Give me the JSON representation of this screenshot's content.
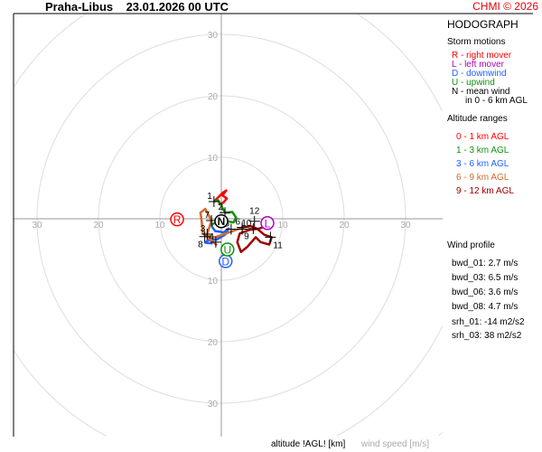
{
  "header": {
    "title": "Praha-Libus    23.01.2026 00 UTC",
    "credit": "CHMI © 2026"
  },
  "panel": {
    "heading": "HODOGRAPH",
    "storm_motions_title": "Storm motions",
    "storm_motions": [
      {
        "text": "R - right mover",
        "color": "#ff0000"
      },
      {
        "text": "L - left mover",
        "color": "#b000c0"
      },
      {
        "text": "D - downwind",
        "color": "#2060ff"
      },
      {
        "text": "U - upwind",
        "color": "#109010"
      },
      {
        "text": "N - mean wind",
        "color": "#000000"
      },
      {
        "text": "in 0 - 6 km AGL",
        "color": "#000000"
      }
    ],
    "altitude_title": "Altitude ranges",
    "altitude_ranges": [
      {
        "text": "0 - 1 km AGL",
        "color": "#ff0000"
      },
      {
        "text": "1 - 3 km AGL",
        "color": "#109010"
      },
      {
        "text": "3 - 6 km AGL",
        "color": "#2060ff"
      },
      {
        "text": "6 - 9 km AGL",
        "color": "#d06a30"
      },
      {
        "text": "9 - 12 km AGL",
        "color": "#a00000"
      }
    ],
    "wind_profile_title": "Wind profile",
    "wind_profile": [
      "bwd_01: 2.7 m/s",
      "bwd_03: 6.5 m/s",
      "bwd_06: 3.6 m/s",
      "bwd_08: 4.7 m/s",
      "srh_01: -14 m2/s2",
      "srh_03: 38 m2/s2"
    ]
  },
  "footer": {
    "altitude_label": "altitude !AGL! [km]",
    "speed_label": "wind speed [m/s]"
  },
  "chart_data": {
    "type": "line",
    "title": "HODOGRAPH",
    "rings": [
      10,
      20,
      30,
      40,
      50
    ],
    "tick_labels": [
      "10",
      "20",
      "30"
    ],
    "grid": true,
    "units": "m/s",
    "series": [
      {
        "name": "0 - 1 km AGL",
        "color": "#ff0000",
        "points": [
          [
            -1.2,
            2.8
          ],
          [
            -0.4,
            3.6
          ],
          [
            0.2,
            4.2
          ],
          [
            0.8,
            4.6
          ],
          [
            0.2,
            3.8
          ],
          [
            0.9,
            3.3
          ],
          [
            0.3,
            2.6
          ],
          [
            -0.5,
            2.4
          ]
        ]
      },
      {
        "name": "1 - 3 km AGL",
        "color": "#109010",
        "points": [
          [
            -1.2,
            2.8
          ],
          [
            -0.5,
            3.0
          ],
          [
            0.6,
            1.0
          ],
          [
            1.8,
            1.1
          ],
          [
            2.4,
            0.2
          ],
          [
            2.0,
            -0.6
          ],
          [
            1.0,
            -0.4
          ],
          [
            -1.4,
            -0.8
          ],
          [
            -1.6,
            -1.2
          ]
        ]
      },
      {
        "name": "3 - 6 km AGL",
        "color": "#2060ff",
        "points": [
          [
            -1.6,
            -1.2
          ],
          [
            -1.0,
            -2.0
          ],
          [
            0.4,
            -2.2
          ],
          [
            1.2,
            -1.6
          ],
          [
            0.6,
            -2.6
          ],
          [
            -0.8,
            -3.4
          ],
          [
            -2.2,
            -3.5
          ],
          [
            -2.6,
            -3.9
          ],
          [
            -1.4,
            -4.0
          ]
        ]
      },
      {
        "name": "6 - 9 km AGL",
        "color": "#d06a30",
        "points": [
          [
            -0.7,
            -4.3
          ],
          [
            -1.8,
            -3.4
          ],
          [
            -3.0,
            -2.4
          ],
          [
            -3.2,
            -0.4
          ],
          [
            -3.4,
            1.0
          ],
          [
            -2.6,
            1.6
          ],
          [
            -1.6,
            -0.3
          ],
          [
            -2.4,
            -2.8
          ],
          [
            -1.0,
            -3.0
          ],
          [
            3.0,
            -1.6
          ],
          [
            3.8,
            -1.2
          ]
        ]
      },
      {
        "name": "9 - 12 km AGL",
        "color": "#a00000",
        "points": [
          [
            3.4,
            -1.4
          ],
          [
            4.8,
            -1.2
          ],
          [
            5.8,
            -1.6
          ],
          [
            7.0,
            -2.6
          ],
          [
            8.2,
            -3.0
          ],
          [
            7.8,
            -4.2
          ],
          [
            6.4,
            -3.8
          ],
          [
            5.6,
            -3.0
          ],
          [
            4.2,
            -4.6
          ],
          [
            3.2,
            -5.4
          ],
          [
            2.6,
            -3.8
          ],
          [
            3.0,
            -2.4
          ],
          [
            4.6,
            -1.8
          ],
          [
            6.2,
            -1.6
          ],
          [
            7.6,
            -1.0
          ]
        ]
      }
    ],
    "altitude_markers": [
      {
        "label": "1",
        "u": -1.2,
        "v": 2.8
      },
      {
        "label": "2",
        "u": 0.6,
        "v": 1.0
      },
      {
        "label": "3",
        "u": -2.3,
        "v": -2.5
      },
      {
        "label": "4",
        "u": -0.9,
        "v": -3.8
      },
      {
        "label": "5",
        "u": 1.6,
        "v": -1.7
      },
      {
        "label": "6",
        "u": 3.4,
        "v": -1.4
      },
      {
        "label": "7",
        "u": -1.6,
        "v": -0.3
      },
      {
        "label": "8",
        "u": -2.7,
        "v": -2.9
      },
      {
        "label": "9",
        "u": 3.4,
        "v": -1.7
      },
      {
        "label": "10",
        "u": 5.2,
        "v": -1.6
      },
      {
        "label": "11",
        "u": 8.0,
        "v": -3.0
      },
      {
        "label": "12",
        "u": 5.4,
        "v": -0.4
      }
    ],
    "storm_motions": [
      {
        "label": "R",
        "u": -7.2,
        "v": -0.1,
        "color": "#ff0000"
      },
      {
        "label": "L",
        "u": 7.5,
        "v": -0.7,
        "color": "#b000c0"
      },
      {
        "label": "D",
        "u": 0.7,
        "v": -6.9,
        "color": "#2060ff"
      },
      {
        "label": "U",
        "u": 1.0,
        "v": -5.0,
        "color": "#109010"
      },
      {
        "label": "N",
        "u": 0.0,
        "v": -0.4,
        "color": "#000000"
      }
    ]
  }
}
